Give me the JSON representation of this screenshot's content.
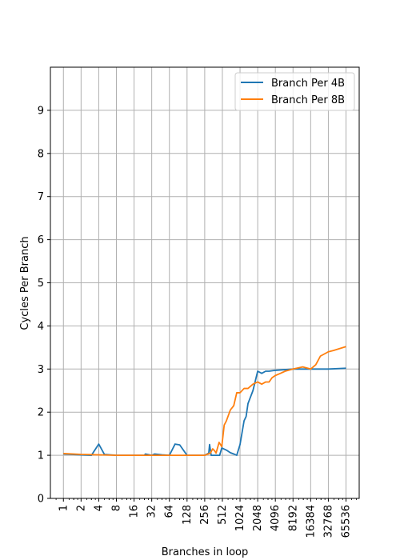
{
  "chart_data": {
    "type": "line",
    "xlabel": "Branches in loop",
    "ylabel": "Cycles Per Branch",
    "xscale": "log2",
    "xlim": [
      0.6,
      110000
    ],
    "ylim": [
      0,
      10
    ],
    "xticks": [
      1,
      2,
      4,
      8,
      16,
      32,
      64,
      128,
      256,
      512,
      1024,
      2048,
      4096,
      8192,
      16384,
      32768,
      65536
    ],
    "xtick_labels": [
      "1",
      "2",
      "4",
      "8",
      "16",
      "32",
      "64",
      "128",
      "256",
      "512",
      "1024",
      "2048",
      "4096",
      "8192",
      "16384",
      "32768",
      "65536"
    ],
    "yticks": [
      0,
      1,
      2,
      3,
      4,
      5,
      6,
      7,
      8,
      9
    ],
    "ytick_labels": [
      "0",
      "1",
      "2",
      "3",
      "4",
      "5",
      "6",
      "7",
      "8",
      "9"
    ],
    "grid": true,
    "legend_position": "top-right",
    "series": [
      {
        "name": "Branch Per 4B",
        "color": "#1f77b4",
        "x": [
          1,
          2,
          3,
          4,
          5,
          8,
          16,
          24,
          25,
          32,
          36,
          48,
          64,
          80,
          96,
          128,
          256,
          300,
          310,
          330,
          380,
          440,
          460,
          500,
          600,
          700,
          800,
          900,
          1024,
          1200,
          1300,
          1400,
          1700,
          2048,
          2400,
          2800,
          3200,
          4096,
          8192,
          16384,
          32768,
          65536
        ],
        "y": [
          1.03,
          1.01,
          1.0,
          1.26,
          1.02,
          1.0,
          1.0,
          1.0,
          1.03,
          1.0,
          1.03,
          1.01,
          1.0,
          1.26,
          1.24,
          1.0,
          1.0,
          1.05,
          1.25,
          1.0,
          1.0,
          1.0,
          1.0,
          1.17,
          1.12,
          1.06,
          1.03,
          1.0,
          1.25,
          1.8,
          1.9,
          2.2,
          2.5,
          2.95,
          2.9,
          2.95,
          2.95,
          2.97,
          3.0,
          3.0,
          3.0,
          3.02
        ]
      },
      {
        "name": "Branch Per 8B",
        "color": "#ff7f0e",
        "x": [
          1,
          2,
          4,
          8,
          16,
          32,
          64,
          128,
          256,
          320,
          350,
          380,
          400,
          450,
          500,
          550,
          600,
          700,
          800,
          900,
          1024,
          1200,
          1400,
          1700,
          2048,
          2400,
          2800,
          3200,
          3600,
          4096,
          5000,
          6000,
          8192,
          12000,
          16384,
          20000,
          24000,
          32768,
          40000,
          65536
        ],
        "y": [
          1.04,
          1.02,
          1.01,
          1.0,
          1.0,
          1.0,
          1.0,
          1.0,
          1.0,
          1.05,
          1.15,
          1.1,
          1.05,
          1.3,
          1.2,
          1.7,
          1.8,
          2.05,
          2.15,
          2.45,
          2.45,
          2.55,
          2.55,
          2.65,
          2.7,
          2.65,
          2.7,
          2.7,
          2.8,
          2.85,
          2.9,
          2.95,
          3.0,
          3.05,
          3.0,
          3.1,
          3.3,
          3.4,
          3.43,
          3.52
        ]
      }
    ]
  }
}
